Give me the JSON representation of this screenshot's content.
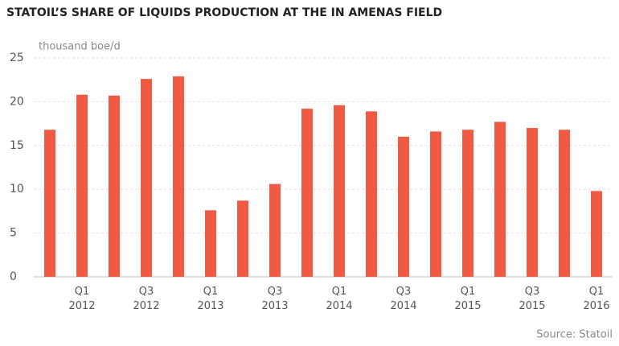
{
  "chart_data": {
    "type": "bar",
    "title": "STATOIL’S SHARE OF LIQUIDS PRODUCTION AT THE IN AMENAS FIELD",
    "y_label": "thousand boe/d",
    "source": "Source: Statoil",
    "categories": [
      null,
      "Q1 2012",
      null,
      "Q3 2012",
      null,
      "Q1 2013",
      null,
      "Q3 2013",
      null,
      "Q1 2014",
      null,
      "Q3 2014",
      null,
      "Q1 2015",
      null,
      "Q3 2015",
      null,
      "Q1 2016"
    ],
    "values": [
      16.8,
      20.8,
      20.7,
      22.6,
      22.9,
      7.6,
      8.7,
      10.6,
      19.2,
      19.6,
      18.9,
      16.0,
      16.6,
      16.8,
      17.7,
      17.0,
      16.8,
      9.8
    ],
    "color": "#f05a44",
    "ylim": [
      0,
      25
    ],
    "yticks": [
      0,
      5,
      10,
      15,
      20,
      25
    ],
    "grid": true
  }
}
